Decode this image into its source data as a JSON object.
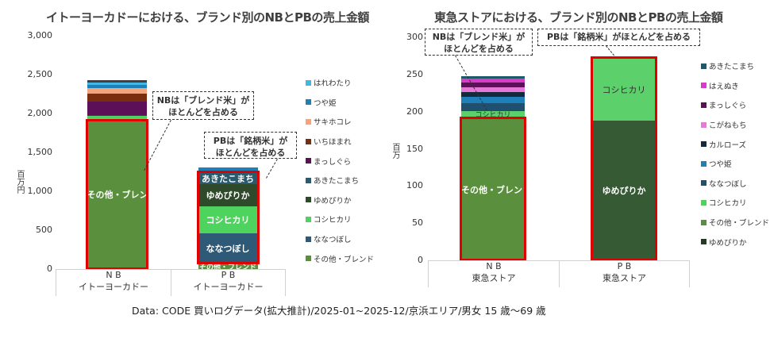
{
  "chart_data": [
    {
      "type": "bar",
      "stacked": true,
      "title": "イトーヨーカドーにおける、ブランド別のNBとPBの売上金額",
      "ylabel": "百万円",
      "xlabel": "",
      "ylim": [
        0,
        3000
      ],
      "yticks": [
        "3,000",
        "2,500",
        "2,000",
        "1,500",
        "1,000",
        "500",
        "0"
      ],
      "categories": [
        {
          "line1": "N B",
          "line2": "イトーヨーカドー"
        },
        {
          "line1": "P B",
          "line2": "イトーヨーカドー"
        }
      ],
      "legend_position": "right",
      "legend": [
        {
          "name": "はれわたり",
          "color": "#3fb8e8"
        },
        {
          "name": "つや姫",
          "color": "#1f7fb8"
        },
        {
          "name": "サキホコレ",
          "color": "#f2a57c"
        },
        {
          "name": "いちほまれ",
          "color": "#7a2e10"
        },
        {
          "name": "まっしぐら",
          "color": "#5c1058"
        },
        {
          "name": "あきたこまち",
          "color": "#2a5a6e"
        },
        {
          "name": "ゆめぴりか",
          "color": "#2e4a2a"
        },
        {
          "name": "コシヒカリ",
          "color": "#4ed35e"
        },
        {
          "name": "ななつぼし",
          "color": "#2e5a78"
        },
        {
          "name": "その他・ブレンド",
          "color": "#5a8f3e"
        }
      ],
      "series": [
        {
          "name": "その他・ブレンド",
          "color": "#5a8f3e",
          "values": [
            1910,
            70
          ]
        },
        {
          "name": "ななつぼし",
          "color": "#2e5a78",
          "values": [
            0,
            390
          ]
        },
        {
          "name": "コシヒカリ",
          "color": "#4ed35e",
          "values": [
            60,
            350
          ]
        },
        {
          "name": "ゆめぴりか",
          "color": "#2e4a2a",
          "values": [
            10,
            280
          ]
        },
        {
          "name": "あきたこまち",
          "color": "#2a5a6e",
          "values": [
            0,
            150
          ]
        },
        {
          "name": "まっしぐら",
          "color": "#5c1058",
          "values": [
            170,
            0
          ]
        },
        {
          "name": "いちほまれ",
          "color": "#7a2e10",
          "values": [
            110,
            0
          ]
        },
        {
          "name": "サキホコレ",
          "color": "#f2a57c",
          "values": [
            70,
            0
          ]
        },
        {
          "name": "つや姫",
          "color": "#1f7fb8",
          "values": [
            40,
            70
          ]
        },
        {
          "name": "はれわたり",
          "color": "#3fb8e8",
          "values": [
            30,
            0
          ]
        },
        {
          "name": "other_top",
          "color": "#404040",
          "values": [
            30,
            0
          ]
        }
      ],
      "segment_labels": [
        {
          "bar": 0,
          "series": "その他・ブレンド",
          "text": "その他・ブレンド"
        },
        {
          "bar": 1,
          "series": "その他・ブレンド",
          "text": "その他・ブレンド"
        },
        {
          "bar": 1,
          "series": "ななつぼし",
          "text": "ななつぼし"
        },
        {
          "bar": 1,
          "series": "コシヒカリ",
          "text": "コシヒカリ"
        },
        {
          "bar": 1,
          "series": "ゆめぴりか",
          "text": "ゆめぴりか"
        },
        {
          "bar": 1,
          "series": "あきたこまち",
          "text": "あきたこまち"
        }
      ],
      "totals": [
        2430,
        1310
      ],
      "annotations": [
        {
          "text_line1": "NBは「ブレンド米」が",
          "text_line2": "ほとんどを占める"
        },
        {
          "text_line1": "PBは「銘柄米」が",
          "text_line2": "ほとんどを占める"
        }
      ]
    },
    {
      "type": "bar",
      "stacked": true,
      "title": "東急ストアにおける、ブランド別のNBとPBの売上金額",
      "ylabel": "百万",
      "xlabel": "",
      "ylim": [
        0,
        300
      ],
      "yticks": [
        "300",
        "250",
        "200",
        "150",
        "100",
        "50",
        "0"
      ],
      "categories": [
        {
          "line1": "N B",
          "line2": "東急ストア"
        },
        {
          "line1": "P B",
          "line2": "東急ストア"
        }
      ],
      "legend_position": "right",
      "legend": [
        {
          "name": "あきたこまち",
          "color": "#1f5a6a"
        },
        {
          "name": "はえぬき",
          "color": "#d63cc8"
        },
        {
          "name": "まっしぐら",
          "color": "#5c1058"
        },
        {
          "name": "こがねもち",
          "color": "#e678d8"
        },
        {
          "name": "カルローズ",
          "color": "#142a3c"
        },
        {
          "name": "つや姫",
          "color": "#1f7fb8"
        },
        {
          "name": "ななつぼし",
          "color": "#1f5070"
        },
        {
          "name": "コシヒカリ",
          "color": "#4ed35e"
        },
        {
          "name": "その他・ブレンド",
          "color": "#5a8f3e"
        },
        {
          "name": "ゆめぴりか",
          "color": "#1f3d1f"
        }
      ],
      "series": [
        {
          "name": "ゆめぴりか",
          "color": "#365a34",
          "values": [
            0,
            188
          ]
        },
        {
          "name": "その他・ブレンド",
          "color": "#5a8f3e",
          "values": [
            191,
            0
          ]
        },
        {
          "name": "コシヒカリ",
          "color": "#5cd06a",
          "values": [
            10,
            84
          ]
        },
        {
          "name": "ななつぼし",
          "color": "#1f5070",
          "values": [
            10,
            0
          ]
        },
        {
          "name": "つや姫",
          "color": "#1f7fb8",
          "values": [
            9,
            0
          ]
        },
        {
          "name": "カルローズ",
          "color": "#142a3c",
          "values": [
            6,
            0
          ]
        },
        {
          "name": "こがねもち",
          "color": "#e678d8",
          "values": [
            7,
            0
          ]
        },
        {
          "name": "まっしぐら",
          "color": "#5c1058",
          "values": [
            6,
            0
          ]
        },
        {
          "name": "はえぬき",
          "color": "#d63cc8",
          "values": [
            6,
            0
          ]
        },
        {
          "name": "あきたこまち",
          "color": "#1f5a6a",
          "values": [
            3,
            0
          ]
        }
      ],
      "segment_labels": [
        {
          "bar": 0,
          "series": "その他・ブレンド",
          "text": "その他・ブレンド"
        },
        {
          "bar": 0,
          "series": "コシヒカリ",
          "text": "コシヒカリ"
        },
        {
          "bar": 1,
          "series": "ゆめぴりか",
          "text": "ゆめぴりか"
        },
        {
          "bar": 1,
          "series": "コシヒカリ",
          "text": "コシヒカリ"
        }
      ],
      "totals": [
        248,
        272
      ],
      "annotations": [
        {
          "text_line1": "NBは「ブレンド米」が",
          "text_line2": "ほとんどを占める"
        },
        {
          "text_line1": "PBは「銘柄米」がほとんどを占める",
          "text_line2": ""
        }
      ]
    }
  ],
  "footer": {
    "source": "Data:  CODE  買いログデータ(拡大推計)/2025-01~2025-12/京浜エリア/男女 15 歳～69 歳"
  }
}
